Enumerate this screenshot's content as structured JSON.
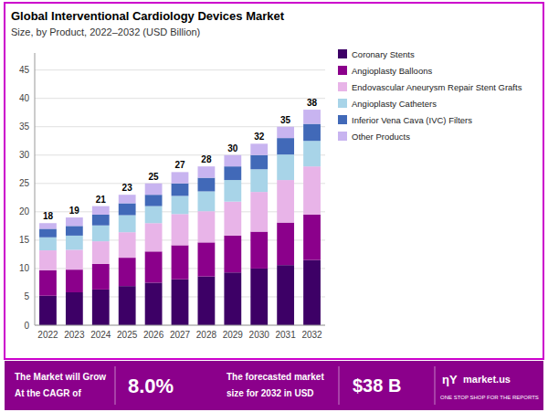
{
  "chart_data": {
    "type": "bar",
    "stacked": true,
    "title": "Global Interventional Cardiology Devices Market",
    "subtitle": "Size, by Product, 2022–2032 (USD Billion)",
    "categories": [
      "2022",
      "2023",
      "2024",
      "2025",
      "2026",
      "2027",
      "2028",
      "2029",
      "2030",
      "2031",
      "2032"
    ],
    "series": [
      {
        "name": "Coronary Stents",
        "color": "#3d0066",
        "values": [
          5.2,
          5.8,
          6.3,
          6.9,
          7.5,
          8.1,
          8.6,
          9.3,
          10.0,
          10.6,
          11.5
        ]
      },
      {
        "name": "Angioplasty Balloons",
        "color": "#8b008b",
        "values": [
          4.5,
          4.0,
          4.5,
          5.0,
          5.5,
          6.0,
          6.0,
          6.5,
          6.5,
          7.5,
          8.0
        ]
      },
      {
        "name": "Endovascular Aneurysm Repair Stent Grafts",
        "color": "#e8b4e8",
        "values": [
          3.5,
          3.5,
          4.0,
          4.5,
          5.0,
          5.5,
          5.5,
          6.0,
          7.0,
          7.5,
          8.5
        ]
      },
      {
        "name": "Angioplasty Catheters",
        "color": "#a8d4e8",
        "values": [
          2.3,
          2.5,
          2.8,
          3.0,
          3.0,
          3.2,
          3.5,
          3.8,
          4.0,
          4.5,
          4.5
        ]
      },
      {
        "name": "Inferior Vena Cava (IVC) Filters",
        "color": "#4169b8",
        "values": [
          1.5,
          1.7,
          1.9,
          2.1,
          2.0,
          2.2,
          2.4,
          2.4,
          2.5,
          2.9,
          3.0
        ]
      },
      {
        "name": "Other Products",
        "color": "#c8b4f0",
        "values": [
          1.0,
          1.5,
          1.5,
          1.5,
          2.0,
          2.0,
          2.0,
          2.0,
          2.0,
          2.0,
          2.5
        ]
      }
    ],
    "totals": [
      18,
      19,
      21,
      23,
      25,
      27,
      28,
      30,
      32,
      35,
      38
    ],
    "ylim": [
      0,
      48
    ],
    "yticks": [
      0,
      5,
      10,
      15,
      20,
      25,
      30,
      35,
      40,
      45
    ],
    "grid": true,
    "legend": "right",
    "annotations": [
      "The Market will Grow",
      "At the CAGR of",
      "8.0%",
      "The forecasted market",
      "size for 2032 in USD",
      "$38 B",
      "ηΥ",
      "market.us",
      "ONE STOP SHOP FOR THE REPORTS"
    ]
  }
}
